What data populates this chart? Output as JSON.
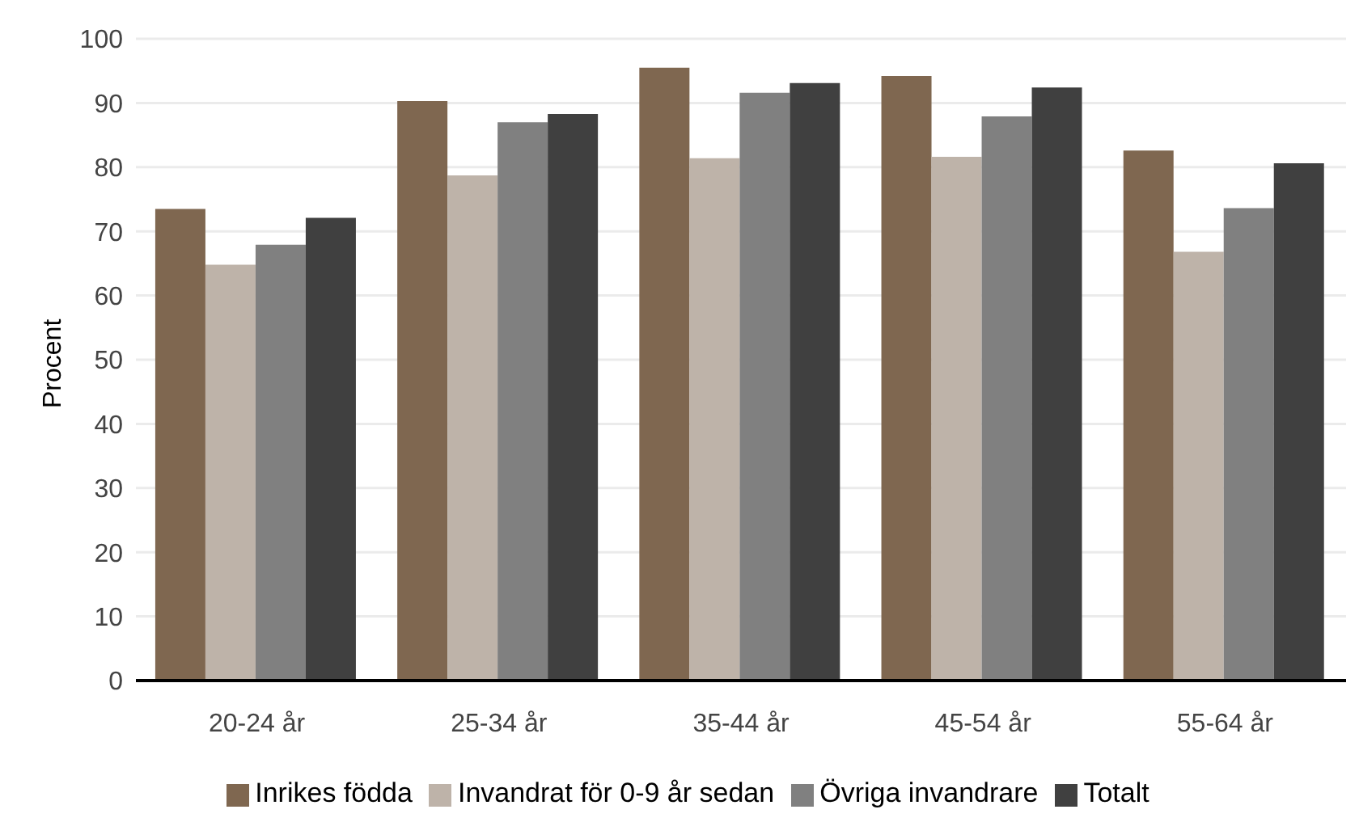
{
  "chart_data": {
    "type": "bar",
    "ylabel": "Procent",
    "categories": [
      "20-24 år",
      "25-34 år",
      "35-44 år",
      "45-54 år",
      "55-64 år"
    ],
    "series": [
      {
        "name": "Inrikes födda",
        "color": "#7f6750",
        "values": [
          73.5,
          90.3,
          95.5,
          94.2,
          82.6
        ]
      },
      {
        "name": "Invandrat för 0-9 år sedan",
        "color": "#beb3a9",
        "values": [
          64.8,
          78.7,
          81.4,
          81.6,
          66.8
        ]
      },
      {
        "name": "Övriga invandrare",
        "color": "#808080",
        "values": [
          67.9,
          87.0,
          91.6,
          87.9,
          73.6
        ]
      },
      {
        "name": "Totalt",
        "color": "#404040",
        "values": [
          72.1,
          88.3,
          93.1,
          92.4,
          80.6
        ]
      }
    ],
    "ylim": [
      0,
      100
    ],
    "yticks": [
      0,
      10,
      20,
      30,
      40,
      50,
      60,
      70,
      80,
      90,
      100
    ],
    "grid": "y",
    "legend": "bottom"
  }
}
